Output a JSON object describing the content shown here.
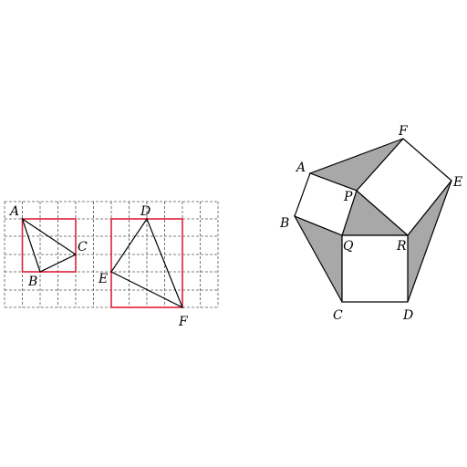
{
  "left_figure": {
    "grid": {
      "cols": 12,
      "rows": 6
    },
    "frame_color": "#e0203a",
    "labels": {
      "A": "A",
      "B": "B",
      "C": "C",
      "D": "D",
      "E": "E",
      "F": "F"
    }
  },
  "right_figure": {
    "shade_color": "#a8a8a8",
    "labels": {
      "A": "A",
      "B": "B",
      "C": "C",
      "D": "D",
      "E": "E",
      "F": "F",
      "P": "P",
      "Q": "Q",
      "R": "R"
    }
  }
}
